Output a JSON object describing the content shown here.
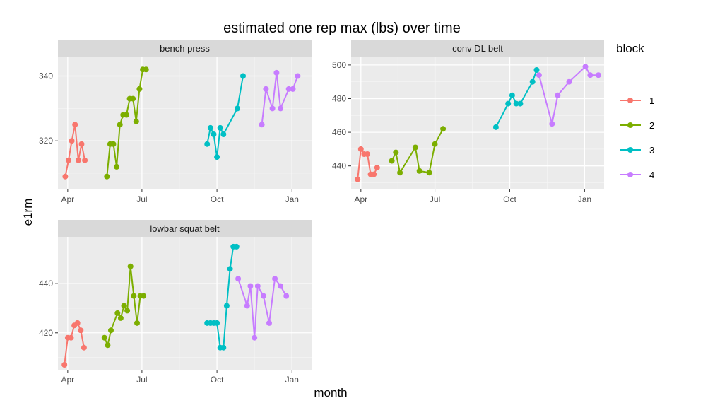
{
  "chart_data": {
    "type": "line",
    "title": "estimated one rep max (lbs) over time",
    "xlabel": "month",
    "ylabel": "e1rm",
    "legend": {
      "title": "block",
      "placement": "right",
      "entries": [
        {
          "label": "1",
          "color": "#F8766D"
        },
        {
          "label": "2",
          "color": "#7CAE00"
        },
        {
          "label": "3",
          "color": "#00BFC4"
        },
        {
          "label": "4",
          "color": "#C77CFF"
        }
      ]
    },
    "grid": true,
    "x_ticks": [
      "Apr",
      "Jul",
      "Oct",
      "Jan"
    ],
    "panels": [
      {
        "name": "bench press",
        "ylim": [
          305,
          346
        ],
        "y_ticks": [
          320,
          340
        ],
        "series": [
          {
            "block": "1",
            "x": [
              "2017-03-29",
              "2017-04-02",
              "2017-04-06",
              "2017-04-10",
              "2017-04-14",
              "2017-04-18",
              "2017-04-22"
            ],
            "y": [
              309,
              314,
              320,
              325,
              314,
              319,
              314
            ]
          },
          {
            "block": "2",
            "x": [
              "2017-05-19",
              "2017-05-23",
              "2017-05-27",
              "2017-05-31",
              "2017-06-04",
              "2017-06-08",
              "2017-06-12",
              "2017-06-16",
              "2017-06-20",
              "2017-06-24",
              "2017-06-28",
              "2017-07-02",
              "2017-07-06"
            ],
            "y": [
              309,
              319,
              319,
              312,
              325,
              328,
              328,
              333,
              333,
              326,
              336,
              342,
              342
            ]
          },
          {
            "block": "3",
            "x": [
              "2017-09-19",
              "2017-09-23",
              "2017-09-27",
              "2017-10-01",
              "2017-10-05",
              "2017-10-09",
              "2017-10-26",
              "2017-11-02"
            ],
            "y": [
              319,
              324,
              322,
              315,
              324,
              322,
              330,
              340
            ]
          },
          {
            "block": "4",
            "x": [
              "2017-11-25",
              "2017-11-30",
              "2017-12-08",
              "2017-12-13",
              "2017-12-18",
              "2017-12-28",
              "2018-01-02",
              "2018-01-08"
            ],
            "y": [
              325,
              336,
              330,
              341,
              330,
              336,
              336,
              340
            ]
          }
        ]
      },
      {
        "name": "conv DL belt",
        "ylim": [
          426,
          505
        ],
        "y_ticks": [
          440,
          460,
          480,
          500
        ],
        "series": [
          {
            "block": "1",
            "x": [
              "2017-03-28",
              "2017-04-01",
              "2017-04-05",
              "2017-04-09",
              "2017-04-13",
              "2017-04-17",
              "2017-04-21"
            ],
            "y": [
              432,
              450,
              447,
              447,
              435,
              435,
              439
            ]
          },
          {
            "block": "2",
            "x": [
              "2017-05-09",
              "2017-05-14",
              "2017-05-19",
              "2017-06-07",
              "2017-06-12",
              "2017-06-24",
              "2017-07-01",
              "2017-07-11"
            ],
            "y": [
              443,
              448,
              436,
              451,
              437,
              436,
              453,
              462
            ]
          },
          {
            "block": "3",
            "x": [
              "2017-09-14",
              "2017-09-29",
              "2017-10-04",
              "2017-10-09",
              "2017-10-14",
              "2017-10-29",
              "2017-11-03"
            ],
            "y": [
              463,
              477,
              482,
              477,
              477,
              490,
              497
            ]
          },
          {
            "block": "4",
            "x": [
              "2017-11-06",
              "2017-11-22",
              "2017-11-29",
              "2017-12-13",
              "2018-01-02",
              "2018-01-08",
              "2018-01-18"
            ],
            "y": [
              494,
              465,
              482,
              490,
              499,
              494,
              494
            ]
          }
        ]
      },
      {
        "name": "lowbar squat belt",
        "ylim": [
          405,
          459
        ],
        "y_ticks": [
          420,
          440
        ],
        "series": [
          {
            "block": "1",
            "x": [
              "2017-03-28",
              "2017-04-01",
              "2017-04-05",
              "2017-04-09",
              "2017-04-13",
              "2017-04-17",
              "2017-04-21"
            ],
            "y": [
              407,
              418,
              418,
              423,
              424,
              421,
              414
            ]
          },
          {
            "block": "2",
            "x": [
              "2017-05-16",
              "2017-05-20",
              "2017-05-24",
              "2017-06-01",
              "2017-06-05",
              "2017-06-09",
              "2017-06-13",
              "2017-06-17",
              "2017-06-21",
              "2017-06-25",
              "2017-06-29",
              "2017-07-03"
            ],
            "y": [
              418,
              415,
              421,
              428,
              426,
              431,
              429,
              447,
              435,
              424,
              435,
              435
            ]
          },
          {
            "block": "3",
            "x": [
              "2017-09-19",
              "2017-09-23",
              "2017-09-27",
              "2017-10-01",
              "2017-10-05",
              "2017-10-09",
              "2017-10-13",
              "2017-10-17",
              "2017-10-21",
              "2017-10-25"
            ],
            "y": [
              424,
              424,
              424,
              424,
              414,
              414,
              431,
              446,
              455,
              455
            ]
          },
          {
            "block": "4",
            "x": [
              "2017-10-27",
              "2017-11-07",
              "2017-11-11",
              "2017-11-16",
              "2017-11-20",
              "2017-11-27",
              "2017-12-04",
              "2017-12-11",
              "2017-12-18",
              "2017-12-25"
            ],
            "y": [
              442,
              431,
              439,
              418,
              439,
              435,
              424,
              442,
              439,
              435
            ]
          }
        ]
      }
    ]
  }
}
